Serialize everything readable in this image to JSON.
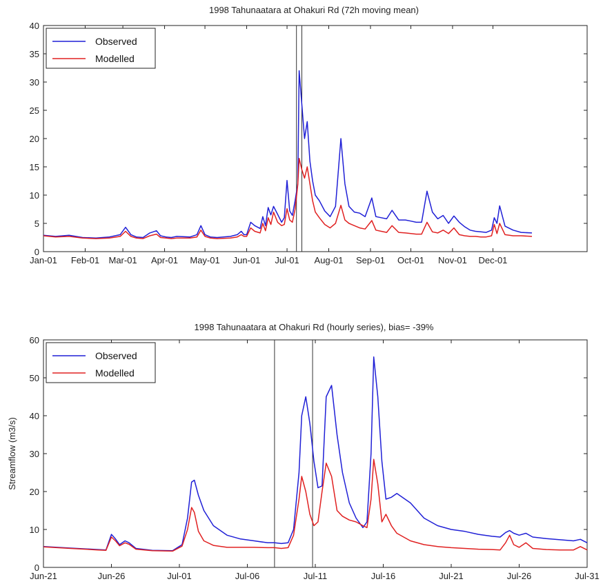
{
  "chart_data": [
    {
      "type": "line",
      "title": "1998 Tahunaatara at Ohakuri Rd (72h moving mean)",
      "xlabel": "",
      "ylabel": "",
      "x_unit": "day-of-year 1998",
      "xlim": [
        1,
        405
      ],
      "ylim": [
        0,
        40
      ],
      "yticks": [
        0,
        5,
        10,
        15,
        20,
        25,
        30,
        35,
        40
      ],
      "xtick_labels": [
        "Jan-01",
        "Feb-01",
        "Mar-01",
        "Apr-01",
        "May-01",
        "Jun-01",
        "Jul-01",
        "Aug-01",
        "Sep-01",
        "Oct-01",
        "Nov-01",
        "Dec-01"
      ],
      "xtick_values": [
        1,
        32,
        60,
        91,
        121,
        152,
        182,
        213,
        244,
        274,
        305,
        335
      ],
      "vlines": [
        189,
        193
      ],
      "grid": false,
      "legend": "top-left",
      "series": [
        {
          "name": "Observed",
          "color": "#1f1fd6",
          "x": [
            1,
            10,
            20,
            30,
            40,
            50,
            58,
            62,
            66,
            70,
            75,
            80,
            85,
            88,
            92,
            96,
            100,
            110,
            115,
            118,
            121,
            125,
            130,
            140,
            145,
            148,
            150,
            152,
            155,
            158,
            162,
            164,
            166,
            168,
            170,
            172,
            175,
            178,
            180,
            182,
            184,
            186,
            188,
            190,
            191,
            193,
            195,
            197,
            199,
            201,
            203,
            206,
            210,
            214,
            218,
            222,
            225,
            228,
            232,
            236,
            240,
            245,
            248,
            252,
            256,
            260,
            265,
            270,
            274,
            278,
            282,
            286,
            290,
            294,
            298,
            302,
            306,
            310,
            314,
            318,
            322,
            326,
            330,
            334,
            336,
            338,
            340,
            344,
            350,
            356,
            364
          ],
          "y": [
            2.9,
            2.7,
            2.9,
            2.5,
            2.4,
            2.6,
            3.0,
            4.3,
            3.0,
            2.6,
            2.5,
            3.3,
            3.7,
            2.8,
            2.6,
            2.5,
            2.7,
            2.6,
            3.0,
            4.6,
            3.0,
            2.6,
            2.5,
            2.7,
            3.0,
            3.6,
            3.0,
            3.0,
            5.2,
            4.6,
            4.1,
            6.2,
            4.6,
            7.8,
            6.5,
            8.0,
            6.6,
            5.2,
            6.0,
            12.6,
            7.2,
            6.4,
            9.0,
            12.0,
            32.0,
            26.0,
            20.0,
            23.0,
            16.0,
            12.5,
            10.0,
            9.0,
            7.2,
            6.2,
            8.0,
            20.0,
            12.0,
            8.0,
            7.0,
            6.8,
            6.2,
            9.5,
            6.2,
            6.0,
            5.8,
            7.3,
            5.6,
            5.6,
            5.4,
            5.2,
            5.2,
            10.7,
            7.0,
            5.8,
            6.4,
            5.0,
            6.3,
            5.2,
            4.4,
            3.8,
            3.6,
            3.5,
            3.4,
            3.8,
            6.0,
            5.0,
            8.1,
            4.5,
            3.8,
            3.4,
            3.3
          ]
        },
        {
          "name": "Modelled",
          "color": "#e02020",
          "x": [
            1,
            10,
            20,
            30,
            40,
            50,
            58,
            62,
            66,
            70,
            75,
            80,
            85,
            88,
            92,
            96,
            100,
            110,
            115,
            118,
            121,
            125,
            130,
            140,
            145,
            148,
            150,
            152,
            155,
            158,
            162,
            164,
            166,
            168,
            170,
            172,
            175,
            178,
            180,
            182,
            184,
            186,
            188,
            190,
            191,
            193,
            195,
            197,
            199,
            201,
            203,
            206,
            210,
            214,
            218,
            222,
            225,
            228,
            232,
            236,
            240,
            245,
            248,
            252,
            256,
            260,
            265,
            270,
            274,
            278,
            282,
            286,
            290,
            294,
            298,
            302,
            306,
            310,
            314,
            318,
            322,
            326,
            330,
            334,
            336,
            338,
            340,
            344,
            350,
            356,
            364
          ],
          "y": [
            2.8,
            2.6,
            2.7,
            2.4,
            2.3,
            2.4,
            2.7,
            3.6,
            2.7,
            2.4,
            2.3,
            2.8,
            3.1,
            2.5,
            2.4,
            2.3,
            2.4,
            2.4,
            2.6,
            3.8,
            2.7,
            2.4,
            2.3,
            2.4,
            2.6,
            3.0,
            2.7,
            2.7,
            4.2,
            3.6,
            3.3,
            5.0,
            3.7,
            6.0,
            4.8,
            7.0,
            5.2,
            4.6,
            4.8,
            7.6,
            5.6,
            5.2,
            7.5,
            11.8,
            16.5,
            14.5,
            13.0,
            15.0,
            12.0,
            9.0,
            7.0,
            6.0,
            4.8,
            4.2,
            5.0,
            8.2,
            5.6,
            5.0,
            4.6,
            4.2,
            4.0,
            5.5,
            3.8,
            3.6,
            3.4,
            4.6,
            3.4,
            3.3,
            3.2,
            3.1,
            3.1,
            5.2,
            3.5,
            3.3,
            3.8,
            3.2,
            4.2,
            3.0,
            2.8,
            2.7,
            2.7,
            2.6,
            2.6,
            2.8,
            4.8,
            3.2,
            5.0,
            3.0,
            2.8,
            2.8,
            2.7
          ]
        }
      ]
    },
    {
      "type": "line",
      "title": "1998 Tahunaatara at Ohakuri Rd (hourly series), bias= -39%",
      "xlabel": "",
      "ylabel": "Streamflow (m3/s)",
      "x_unit": "day of 1998 (Jun-21 = 0)",
      "xlim": [
        0,
        40
      ],
      "ylim": [
        0,
        60
      ],
      "yticks": [
        0,
        10,
        20,
        30,
        40,
        50,
        60
      ],
      "xtick_labels": [
        "Jun-21",
        "Jun-26",
        "Jul-01",
        "Jul-06",
        "Jul-11",
        "Jul-16",
        "Jul-21",
        "Jul-26",
        "Jul-31"
      ],
      "xtick_values": [
        0,
        5,
        10,
        15,
        20,
        25,
        30,
        35,
        40
      ],
      "vlines": [
        17.0,
        19.8
      ],
      "grid": false,
      "legend": "top-left",
      "series": [
        {
          "name": "Observed",
          "color": "#1f1fd6",
          "x": [
            0,
            2,
            4,
            4.6,
            5.0,
            5.3,
            5.6,
            6.0,
            6.3,
            6.8,
            8,
            9.5,
            10.2,
            10.6,
            10.9,
            11.1,
            11.4,
            11.8,
            12.5,
            13.5,
            14.5,
            15.5,
            16.5,
            17.0,
            17.5,
            18.0,
            18.4,
            18.8,
            19.0,
            19.3,
            19.6,
            19.9,
            20.2,
            20.5,
            20.8,
            21.2,
            21.6,
            22,
            22.5,
            23,
            23.5,
            23.8,
            24.1,
            24.3,
            24.6,
            24.9,
            25.2,
            25.6,
            26.0,
            27,
            28,
            29,
            30,
            31,
            32,
            33,
            33.6,
            34.0,
            34.3,
            34.6,
            35.0,
            35.5,
            36,
            37,
            38,
            39,
            39.5,
            40
          ],
          "y": [
            5.5,
            5.1,
            4.7,
            4.6,
            8.7,
            7.5,
            6.0,
            7.0,
            6.5,
            5.0,
            4.5,
            4.4,
            6.0,
            13.0,
            22.5,
            23.0,
            19.0,
            15.0,
            11.0,
            8.5,
            7.5,
            7.0,
            6.5,
            6.5,
            6.3,
            6.5,
            10.0,
            25.0,
            40.0,
            45.0,
            38.0,
            28.0,
            21.0,
            21.5,
            45.0,
            48.0,
            35.0,
            25.0,
            17.0,
            13.0,
            10.5,
            12.0,
            30.0,
            55.5,
            45.0,
            28.0,
            18.0,
            18.5,
            19.5,
            17.0,
            13.0,
            11.0,
            10.0,
            9.5,
            8.7,
            8.2,
            8.0,
            9.2,
            9.7,
            9.0,
            8.5,
            9.0,
            8.0,
            7.6,
            7.3,
            7.0,
            7.4,
            6.5
          ]
        },
        {
          "name": "Modelled",
          "color": "#e02020",
          "x": [
            0,
            2,
            4,
            4.6,
            5.0,
            5.3,
            5.6,
            6.0,
            6.3,
            6.8,
            8,
            9.5,
            10.2,
            10.6,
            10.9,
            11.1,
            11.4,
            11.8,
            12.5,
            13.5,
            14.5,
            15.5,
            16.5,
            17.0,
            17.5,
            18.0,
            18.4,
            18.8,
            19.0,
            19.3,
            19.6,
            19.9,
            20.2,
            20.5,
            20.8,
            21.2,
            21.6,
            22,
            22.5,
            23,
            23.5,
            23.8,
            24.1,
            24.3,
            24.6,
            24.9,
            25.2,
            25.6,
            26.0,
            27,
            28,
            29,
            30,
            31,
            32,
            33,
            33.6,
            34.0,
            34.3,
            34.6,
            35.0,
            35.5,
            36,
            37,
            38,
            39,
            39.5,
            40
          ],
          "y": [
            5.4,
            5.0,
            4.6,
            4.5,
            8.0,
            7.0,
            5.7,
            6.5,
            6.1,
            4.8,
            4.4,
            4.3,
            5.6,
            10.0,
            15.8,
            14.5,
            9.5,
            7.0,
            5.8,
            5.3,
            5.3,
            5.3,
            5.2,
            5.2,
            5.0,
            5.2,
            8.5,
            18.0,
            24.0,
            20.0,
            14.0,
            11.0,
            12.0,
            20.0,
            27.5,
            24.0,
            15.0,
            13.5,
            12.5,
            12.0,
            11.0,
            10.5,
            18.0,
            28.5,
            22.0,
            12.0,
            14.0,
            11.0,
            9.0,
            7.0,
            6.0,
            5.5,
            5.2,
            5.0,
            4.8,
            4.7,
            4.6,
            6.5,
            8.5,
            6.0,
            5.3,
            6.5,
            5.0,
            4.7,
            4.6,
            4.6,
            5.5,
            4.6
          ]
        }
      ]
    }
  ]
}
